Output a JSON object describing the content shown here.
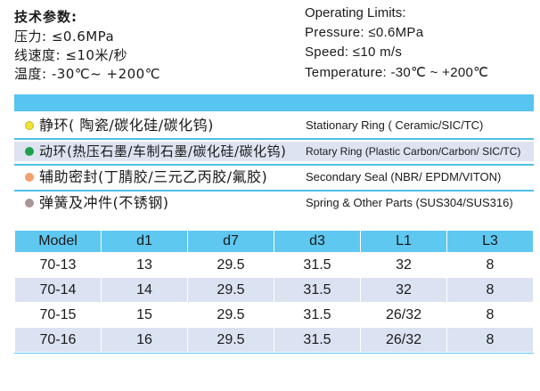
{
  "limits_zh": {
    "title": "技术参数:",
    "pressure": "压力: ≤0.6MPa",
    "speed": "线速度: ≤10米/秒",
    "temperature": "温度: -30℃~ +200℃"
  },
  "limits_en": {
    "title": "Operating Limits:",
    "pressure": "Pressure: ≤0.6MPa",
    "speed": "Speed: ≤10 m/s",
    "temperature": "Temperature: -30℃ ~ +200℃"
  },
  "components": [
    {
      "zh": "静环( 陶瓷/碳化硅/碳化钨)",
      "en": "Stationary Ring ( Ceramic/SIC/TC)",
      "dot_color": "#f2e436"
    },
    {
      "zh": "动环(热压石墨/车制石墨/碳化硅/碳化钨)",
      "en": "Rotary Ring (Plastic Carbon/Carbon/ SIC/TC)",
      "dot_color": "#1fa04a"
    },
    {
      "zh": "辅助密封(丁腈胶/三元乙丙胶/氟胶)",
      "en": "Secondary Seal (NBR/ EPDM/VITON)",
      "dot_color": "#f2a06a"
    },
    {
      "zh": "弹簧及冲件(不锈钢)",
      "en": "Spring & Other Parts (SUS304/SUS316)",
      "dot_color": "#a99698"
    }
  ],
  "table": {
    "headers": [
      "Model",
      "d1",
      "d7",
      "d3",
      "L1",
      "L3"
    ],
    "rows": [
      [
        "70-13",
        "13",
        "29.5",
        "31.5",
        "32",
        "8"
      ],
      [
        "70-14",
        "14",
        "29.5",
        "31.5",
        "32",
        "8"
      ],
      [
        "70-15",
        "15",
        "29.5",
        "31.5",
        "26/32",
        "8"
      ],
      [
        "70-16",
        "16",
        "29.5",
        "31.5",
        "26/32",
        "8"
      ]
    ]
  },
  "colors": {
    "band_blue": "#56c5ef",
    "row_shade": "#dde3f1"
  }
}
